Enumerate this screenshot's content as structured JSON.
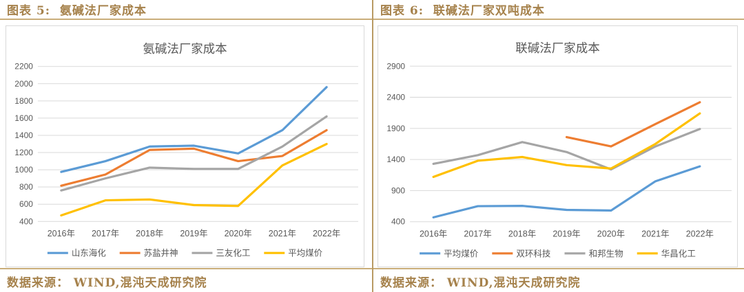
{
  "page": {
    "background": "#ffffff",
    "accent_gold_text": "#a6824c",
    "accent_gold_line": "#c9ad79",
    "axis_text_color": "#595959",
    "gridline_color": "#d9d9d9"
  },
  "panels": [
    {
      "caption": "图表 5:  氨碱法厂家成本",
      "source": "数据来源： WIND,混沌天成研究院"
    },
    {
      "caption": "图表 6:  联碱法厂家双吨成本",
      "source": "数据来源： WIND,混沌天成研究院"
    }
  ],
  "chart_data": [
    {
      "type": "line",
      "title": "氨碱法厂家成本",
      "categories": [
        "2016年",
        "2017年",
        "2018年",
        "2019年",
        "2020年",
        "2021年",
        "2022年"
      ],
      "series": [
        {
          "name": "山东海化",
          "color": "#5B9BD5",
          "values": [
            975,
            1100,
            1270,
            1280,
            1190,
            1460,
            1960
          ]
        },
        {
          "name": "苏盐井神",
          "color": "#ED7D31",
          "values": [
            815,
            945,
            1230,
            1245,
            1100,
            1160,
            1460
          ]
        },
        {
          "name": "三友化工",
          "color": "#A5A5A5",
          "values": [
            760,
            900,
            1025,
            1010,
            1010,
            1270,
            1620
          ]
        },
        {
          "name": "平均煤价",
          "color": "#FFC000",
          "values": [
            470,
            645,
            655,
            590,
            580,
            1050,
            1300
          ]
        }
      ],
      "xlabel": "",
      "ylabel": "",
      "ylim": [
        400,
        2200
      ],
      "ytick_step": 200,
      "grid": true,
      "legend_position": "bottom"
    },
    {
      "type": "line",
      "title": "联碱法厂家成本",
      "categories": [
        "2016年",
        "2017年",
        "2018年",
        "2019年",
        "2020年",
        "2021年",
        "2022年"
      ],
      "series": [
        {
          "name": "平均煤价",
          "color": "#5B9BD5",
          "values": [
            470,
            650,
            655,
            590,
            580,
            1050,
            1290
          ]
        },
        {
          "name": "双环科技",
          "color": "#ED7D31",
          "values": [
            null,
            null,
            null,
            1760,
            1610,
            1970,
            2320
          ]
        },
        {
          "name": "和邦生物",
          "color": "#A5A5A5",
          "values": [
            1330,
            1470,
            1680,
            1520,
            1240,
            1610,
            1890
          ]
        },
        {
          "name": "华昌化工",
          "color": "#FFC000",
          "values": [
            1120,
            1380,
            1440,
            1310,
            1255,
            1650,
            2140
          ]
        }
      ],
      "xlabel": "",
      "ylabel": "",
      "ylim": [
        400,
        2900
      ],
      "ytick_step": 500,
      "grid": true,
      "legend_position": "bottom"
    }
  ]
}
